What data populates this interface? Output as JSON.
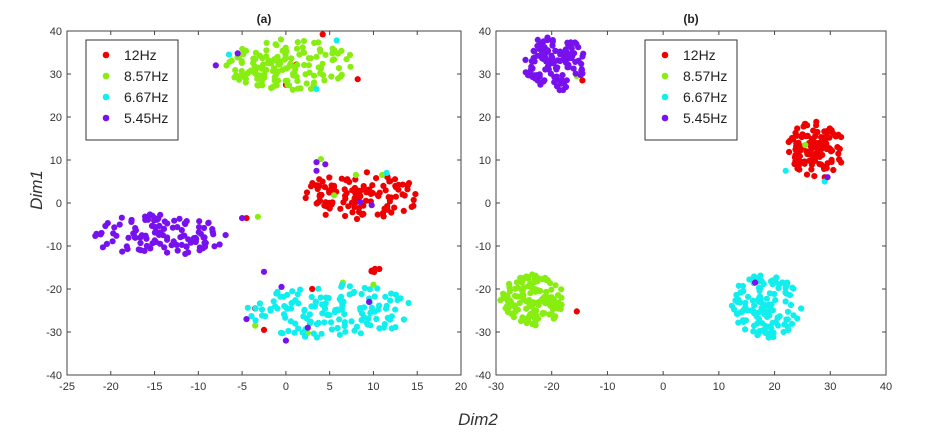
{
  "figure": {
    "xlabel": "Dim2",
    "ylabel": "Dim1"
  },
  "chart_data": [
    {
      "type": "scatter",
      "title": "(a)",
      "xlim": [
        -25,
        20
      ],
      "ylim": [
        -40,
        40
      ],
      "xticks": [
        -25,
        -20,
        -15,
        -10,
        -5,
        0,
        5,
        10,
        15,
        20
      ],
      "yticks": [
        -40,
        -30,
        -20,
        -10,
        0,
        10,
        20,
        30,
        40
      ],
      "legend_position": "top-left",
      "series": [
        {
          "name": "12Hz",
          "color": "#ee0000",
          "clusters": [
            {
              "cx": 8.5,
              "cy": 1.8,
              "rx": 6.8,
              "ry": 5.6,
              "n": 120,
              "seed": 11
            },
            {
              "cx": 10.2,
              "cy": -15.5,
              "rx": 0.5,
              "ry": 0.8,
              "n": 6,
              "seed": 12
            }
          ],
          "points": [
            [
              8.2,
              28.8
            ],
            [
              1.2,
              32.2
            ],
            [
              0.0,
              27.5
            ],
            [
              4.2,
              39.2
            ],
            [
              -2.5,
              -29.5
            ],
            [
              -3.5,
              -24.5
            ],
            [
              3.0,
              -20.0
            ],
            [
              -4.5,
              -3.5
            ],
            [
              9.2,
              2.5
            ],
            [
              5.5,
              4.0
            ]
          ]
        },
        {
          "name": "8.57Hz",
          "color": "#88ee11",
          "clusters": [
            {
              "cx": 0.5,
              "cy": 32.0,
              "rx": 7.5,
              "ry": 6.2,
              "n": 150,
              "seed": 21
            }
          ],
          "points": [
            [
              -3.2,
              -3.2
            ],
            [
              4.0,
              10.2
            ],
            [
              8.0,
              6.5
            ],
            [
              11.0,
              6.5
            ],
            [
              5.5,
              1.8
            ],
            [
              -3.5,
              -28.5
            ],
            [
              2.5,
              -30.2
            ],
            [
              10.0,
              -19.0
            ],
            [
              6.5,
              -18.5
            ]
          ]
        },
        {
          "name": "6.67Hz",
          "color": "#11eeee",
          "clusters": [
            {
              "cx": 5.0,
              "cy": -25.0,
              "rx": 9.5,
              "ry": 6.5,
              "n": 140,
              "seed": 31
            }
          ],
          "points": [
            [
              5.8,
              37.8
            ],
            [
              3.5,
              26.5
            ],
            [
              11.5,
              7.0
            ],
            [
              -6.5,
              34.5
            ]
          ]
        },
        {
          "name": "5.45Hz",
          "color": "#7711ee",
          "clusters": [
            {
              "cx": -14.5,
              "cy": -7.5,
              "rx": 8.0,
              "ry": 5.0,
              "n": 115,
              "seed": 41
            }
          ],
          "points": [
            [
              -8.0,
              32.0
            ],
            [
              -5.5,
              34.8
            ],
            [
              3.5,
              7.5
            ],
            [
              9.8,
              -0.5
            ],
            [
              -2.5,
              -16.0
            ],
            [
              -4.5,
              -27.0
            ],
            [
              2.5,
              -29.0
            ],
            [
              0.0,
              -32.0
            ],
            [
              -0.5,
              -19.5
            ],
            [
              9.5,
              -23.0
            ],
            [
              -5.0,
              -3.5
            ],
            [
              3.5,
              9.5
            ],
            [
              4.5,
              9.0
            ],
            [
              8.5,
              0.2
            ]
          ]
        }
      ]
    },
    {
      "type": "scatter",
      "title": "(b)",
      "xlim": [
        -30,
        40
      ],
      "ylim": [
        -40,
        40
      ],
      "xticks": [
        -30,
        -20,
        -10,
        0,
        10,
        20,
        30,
        40
      ],
      "yticks": [
        -40,
        -30,
        -20,
        -10,
        0,
        10,
        20,
        30,
        40
      ],
      "legend_position": "top-center",
      "series": [
        {
          "name": "12Hz",
          "color": "#ee0000",
          "clusters": [
            {
              "cx": 27.5,
              "cy": 12.5,
              "rx": 5.2,
              "ry": 6.5,
              "n": 120,
              "seed": 51
            }
          ],
          "points": [
            [
              -15.5,
              -25.2
            ],
            [
              -14.5,
              28.5
            ],
            [
              29.0,
              6.0
            ]
          ]
        },
        {
          "name": "8.57Hz",
          "color": "#88ee11",
          "clusters": [
            {
              "cx": -23.5,
              "cy": -22.5,
              "rx": 5.8,
              "ry": 6.0,
              "n": 130,
              "seed": 61
            }
          ],
          "points": [
            [
              25.5,
              13.5
            ],
            [
              -15.5,
              29.5
            ]
          ]
        },
        {
          "name": "6.67Hz",
          "color": "#11eeee",
          "clusters": [
            {
              "cx": 18.5,
              "cy": -24.0,
              "rx": 6.5,
              "ry": 7.5,
              "n": 130,
              "seed": 71
            }
          ],
          "points": [
            [
              29.0,
              5.0
            ],
            [
              22.0,
              7.5
            ]
          ]
        },
        {
          "name": "5.45Hz",
          "color": "#7711ee",
          "clusters": [
            {
              "cx": -19.5,
              "cy": 32.5,
              "rx": 5.5,
              "ry": 6.5,
              "n": 120,
              "seed": 81
            }
          ],
          "points": [
            [
              16.5,
              -18.5
            ],
            [
              29.5,
              6.0
            ]
          ]
        }
      ]
    }
  ]
}
